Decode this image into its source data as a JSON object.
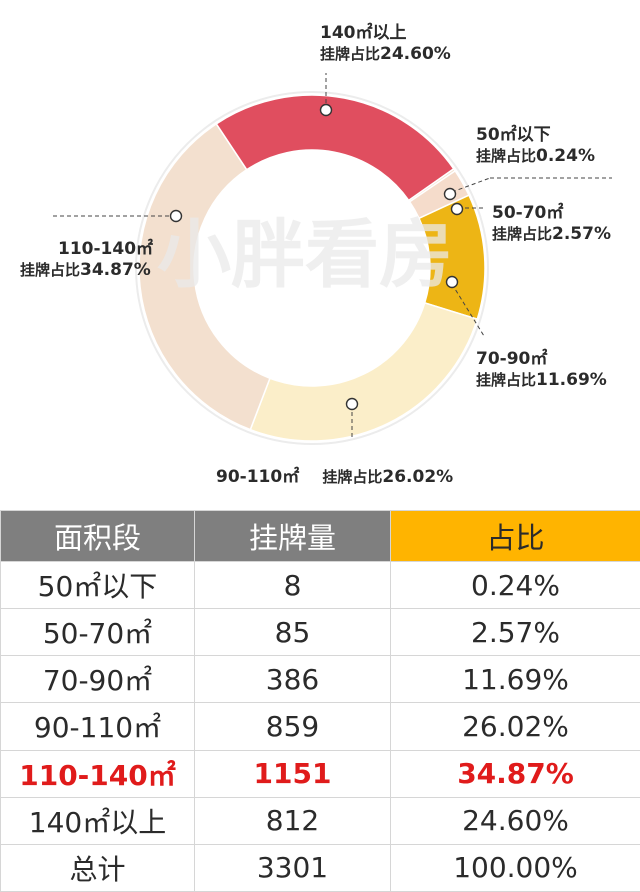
{
  "chart_data": {
    "type": "pie",
    "style": "donut",
    "categories": [
      "50㎡以下",
      "50-70㎡",
      "70-90㎡",
      "90-110㎡",
      "110-140㎡",
      "140㎡以上"
    ],
    "values": [
      0.24,
      2.57,
      11.69,
      26.02,
      34.87,
      24.6
    ],
    "value_prefix": "挂牌占比",
    "value_suffix": "%",
    "colors": [
      "#f3e1cd",
      "#f5dccb",
      "#edb515",
      "#fbeec9",
      "#f3e0cf",
      "#e04e5f"
    ],
    "watermark": "小胖看房",
    "labels": [
      {
        "name": "50㎡以下",
        "share": "挂牌占比",
        "value": "0.24%"
      },
      {
        "name": "50-70㎡",
        "share": "挂牌占比",
        "value": "2.57%"
      },
      {
        "name": "70-90㎡",
        "share": "挂牌占比",
        "value": "11.69%"
      },
      {
        "name": "90-110㎡",
        "share": "挂牌占比",
        "value": "26.02%"
      },
      {
        "name": "110-140㎡",
        "share": "挂牌占比",
        "value": "34.87%"
      },
      {
        "name": "140㎡以上",
        "share": "挂牌占比",
        "value": "24.60%"
      }
    ]
  },
  "table": {
    "headers": [
      "面积段",
      "挂牌量",
      "占比"
    ],
    "highlight_color": "#e01b1b",
    "rows": [
      {
        "range": "50㎡以下",
        "count": "8",
        "pct": "0.24%"
      },
      {
        "range": "50-70㎡",
        "count": "85",
        "pct": "2.57%"
      },
      {
        "range": "70-90㎡",
        "count": "386",
        "pct": "11.69%"
      },
      {
        "range": "90-110㎡",
        "count": "859",
        "pct": "26.02%"
      },
      {
        "range": "110-140㎡",
        "count": "1151",
        "pct": "34.87%",
        "highlight": true
      },
      {
        "range": "140㎡以上",
        "count": "812",
        "pct": "24.60%"
      },
      {
        "range": "总计",
        "count": "3301",
        "pct": "100.00%"
      }
    ]
  }
}
